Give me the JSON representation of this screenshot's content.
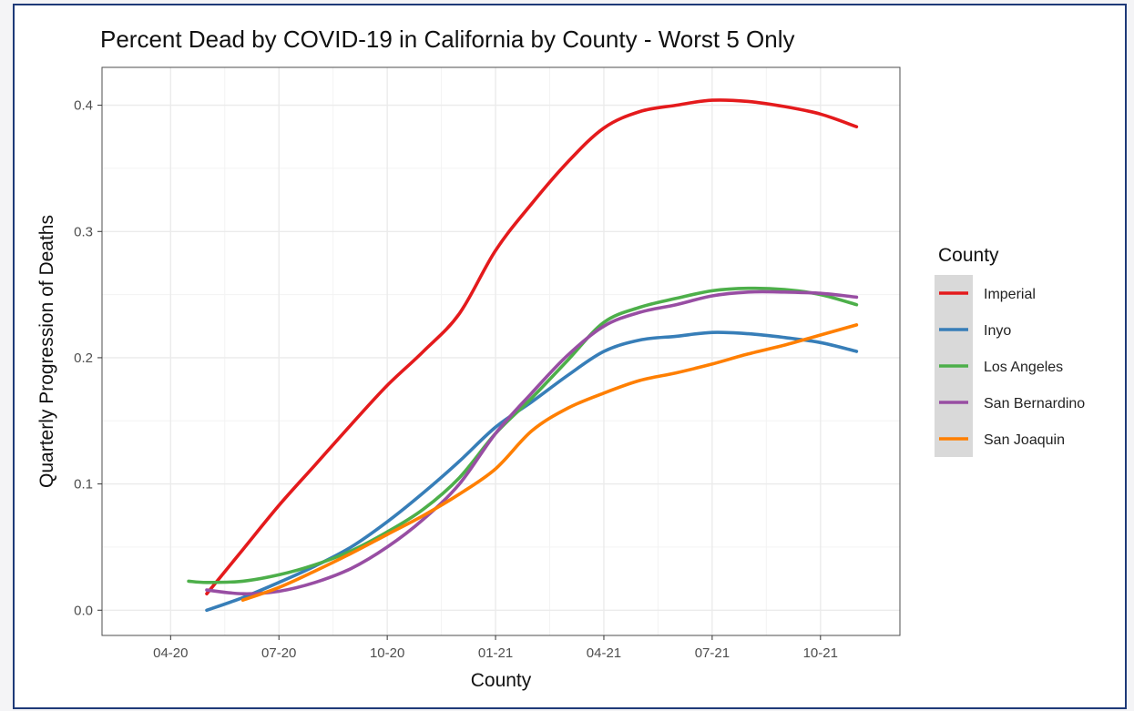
{
  "chart_data": {
    "type": "line",
    "title": "Percent Dead by COVID-19 in California by County - Worst 5 Only",
    "xlabel": "County",
    "ylabel": "Quarterly Progression of Deaths",
    "x_tick_labels": [
      "04-20",
      "07-20",
      "10-20",
      "01-21",
      "04-21",
      "07-21",
      "10-21"
    ],
    "x_tick_values": [
      0,
      3,
      6,
      9,
      12,
      15,
      18
    ],
    "xlim": [
      -1.9,
      20.2
    ],
    "y_tick_labels": [
      "0.0",
      "0.1",
      "0.2",
      "0.3",
      "0.4"
    ],
    "y_tick_values": [
      0.0,
      0.1,
      0.2,
      0.3,
      0.4
    ],
    "ylim": [
      -0.02,
      0.43
    ],
    "grid": true,
    "legend": {
      "title": "County",
      "position": "right"
    },
    "series": [
      {
        "name": "Imperial",
        "color": "#e41a1c",
        "x": [
          1,
          2,
          3,
          4,
          5,
          6,
          7,
          8,
          9,
          10,
          11,
          12,
          13,
          14,
          15,
          16,
          17,
          18,
          19
        ],
        "values": [
          0.013,
          0.048,
          0.083,
          0.115,
          0.147,
          0.178,
          0.205,
          0.235,
          0.285,
          0.322,
          0.355,
          0.382,
          0.395,
          0.4,
          0.404,
          0.403,
          0.399,
          0.393,
          0.383
        ]
      },
      {
        "name": "Inyo",
        "color": "#377eb8",
        "x": [
          1,
          2,
          3,
          4,
          5,
          6,
          7,
          8,
          9,
          10,
          11,
          12,
          13,
          14,
          15,
          16,
          17,
          18,
          19
        ],
        "values": [
          0.0,
          0.01,
          0.022,
          0.035,
          0.05,
          0.07,
          0.093,
          0.118,
          0.145,
          0.165,
          0.186,
          0.205,
          0.214,
          0.217,
          0.22,
          0.219,
          0.216,
          0.212,
          0.205
        ]
      },
      {
        "name": "Los Angeles",
        "color": "#4daf4a",
        "x": [
          0.5,
          1,
          2,
          3,
          4,
          5,
          6,
          7,
          8,
          9,
          10,
          11,
          12,
          13,
          14,
          15,
          16,
          17,
          18,
          19
        ],
        "values": [
          0.023,
          0.022,
          0.023,
          0.028,
          0.036,
          0.047,
          0.062,
          0.08,
          0.105,
          0.14,
          0.168,
          0.198,
          0.228,
          0.24,
          0.247,
          0.253,
          0.255,
          0.254,
          0.25,
          0.242
        ]
      },
      {
        "name": "San Bernardino",
        "color": "#984ea3",
        "x": [
          1,
          2,
          3,
          4,
          5,
          6,
          7,
          8,
          9,
          10,
          11,
          12,
          13,
          14,
          15,
          16,
          17,
          18,
          19
        ],
        "values": [
          0.016,
          0.013,
          0.015,
          0.022,
          0.033,
          0.05,
          0.072,
          0.1,
          0.14,
          0.172,
          0.202,
          0.225,
          0.236,
          0.242,
          0.249,
          0.252,
          0.252,
          0.251,
          0.248
        ]
      },
      {
        "name": "San Joaquin",
        "color": "#ff7f00",
        "x": [
          2,
          3,
          4,
          5,
          6,
          7,
          8,
          9,
          10,
          11,
          12,
          13,
          14,
          15,
          16,
          17,
          18,
          19
        ],
        "values": [
          0.008,
          0.018,
          0.031,
          0.045,
          0.06,
          0.075,
          0.092,
          0.112,
          0.142,
          0.16,
          0.172,
          0.182,
          0.188,
          0.195,
          0.203,
          0.21,
          0.218,
          0.226
        ]
      }
    ]
  },
  "colors": {
    "panel_border": "#1e3a78",
    "grid": "#ebebeb",
    "plot_border": "#4d4d4d",
    "legend_key_bg": "#d9d9d9"
  }
}
